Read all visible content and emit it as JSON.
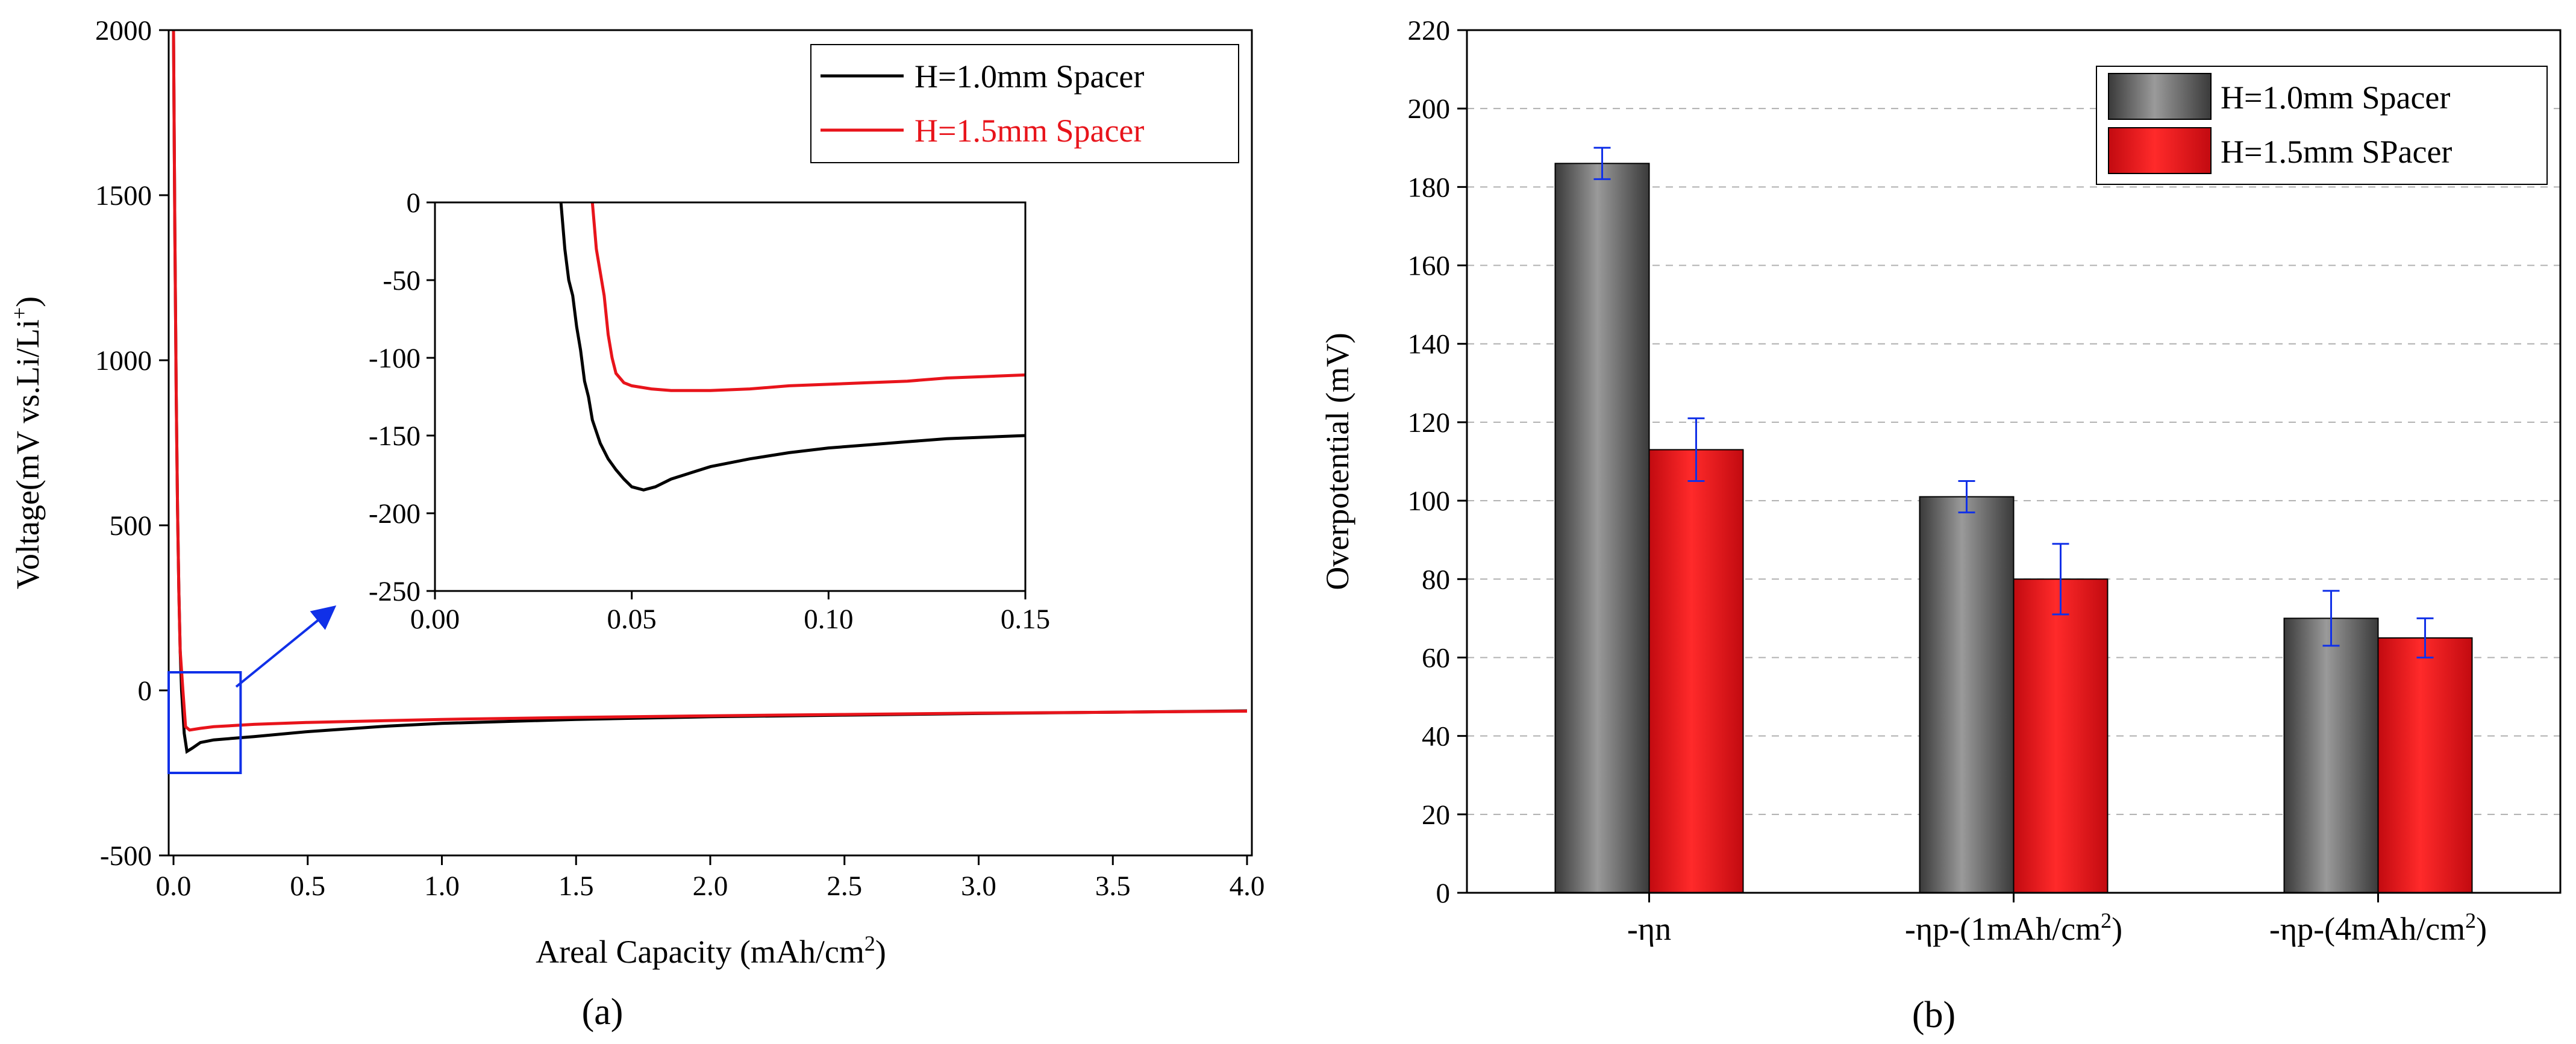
{
  "figure": {
    "panel_a_label": "(a)",
    "panel_b_label": "(b)"
  },
  "chart_data": [
    {
      "type": "line",
      "panel": "(a)",
      "xlabel": "Areal Capacity (mAh/cm",
      "xlabel_sup": "2",
      "xlabel_end": ")",
      "ylabel": "Voltage(mV vs.Li/Li",
      "ylabel_sup": "+",
      "ylabel_end": ")",
      "xlim": [
        0,
        4.0
      ],
      "ylim": [
        -500,
        2000
      ],
      "xticks": [
        0.0,
        0.5,
        1.0,
        1.5,
        2.0,
        2.5,
        3.0,
        3.5,
        4.0
      ],
      "xtick_labels": [
        "0.0",
        "0.5",
        "1.0",
        "1.5",
        "2.0",
        "2.5",
        "3.0",
        "3.5",
        "4.0"
      ],
      "yticks": [
        -500,
        0,
        500,
        1000,
        1500,
        2000
      ],
      "ytick_labels": [
        "-500",
        "0",
        "500",
        "1000",
        "1500",
        "2000"
      ],
      "legend": [
        "H=1.0mm Spacer",
        "H=1.5mm Spacer"
      ],
      "legend_position": "top-right",
      "series": [
        {
          "name": "H=1.0mm Spacer",
          "color": "#000000",
          "points": [
            [
              0.0,
              2000
            ],
            [
              0.005,
              1400
            ],
            [
              0.01,
              900
            ],
            [
              0.015,
              550
            ],
            [
              0.02,
              300
            ],
            [
              0.025,
              120
            ],
            [
              0.03,
              0
            ],
            [
              0.04,
              -130
            ],
            [
              0.05,
              -185
            ],
            [
              0.07,
              -175
            ],
            [
              0.1,
              -158
            ],
            [
              0.15,
              -150
            ],
            [
              0.3,
              -140
            ],
            [
              0.5,
              -125
            ],
            [
              0.8,
              -108
            ],
            [
              1.0,
              -100
            ],
            [
              1.5,
              -88
            ],
            [
              2.0,
              -80
            ],
            [
              2.5,
              -75
            ],
            [
              3.0,
              -70
            ],
            [
              3.5,
              -66
            ],
            [
              4.0,
              -62
            ]
          ]
        },
        {
          "name": "H=1.5mm Spacer",
          "color": "#e8141b",
          "points": [
            [
              0.0,
              2000
            ],
            [
              0.005,
              1400
            ],
            [
              0.01,
              900
            ],
            [
              0.015,
              550
            ],
            [
              0.02,
              300
            ],
            [
              0.025,
              120
            ],
            [
              0.035,
              0
            ],
            [
              0.045,
              -110
            ],
            [
              0.06,
              -120
            ],
            [
              0.1,
              -115
            ],
            [
              0.15,
              -110
            ],
            [
              0.3,
              -103
            ],
            [
              0.5,
              -97
            ],
            [
              1.0,
              -88
            ],
            [
              1.5,
              -82
            ],
            [
              2.0,
              -77
            ],
            [
              2.5,
              -73
            ],
            [
              3.0,
              -69
            ],
            [
              3.5,
              -66
            ],
            [
              4.0,
              -63
            ]
          ]
        }
      ],
      "inset": {
        "xlim": [
          0.0,
          0.15
        ],
        "ylim": [
          -250,
          0
        ],
        "xticks": [
          0.0,
          0.05,
          0.1,
          0.15
        ],
        "xtick_labels": [
          "0.00",
          "0.05",
          "0.10",
          "0.15"
        ],
        "yticks": [
          -250,
          -200,
          -150,
          -100,
          -50,
          0
        ],
        "ytick_labels": [
          "-250",
          "-200",
          "-150",
          "-100",
          "-50",
          "0"
        ],
        "highlight_box": {
          "x": [
            0.0,
            0.25
          ],
          "y": [
            -250,
            0
          ]
        },
        "series": [
          {
            "name": "H=1.0mm Spacer",
            "color": "#000000",
            "points": [
              [
                0.032,
                0
              ],
              [
                0.033,
                -30
              ],
              [
                0.034,
                -50
              ],
              [
                0.035,
                -60
              ],
              [
                0.036,
                -80
              ],
              [
                0.037,
                -95
              ],
              [
                0.038,
                -115
              ],
              [
                0.039,
                -125
              ],
              [
                0.04,
                -140
              ],
              [
                0.042,
                -155
              ],
              [
                0.044,
                -165
              ],
              [
                0.046,
                -172
              ],
              [
                0.048,
                -178
              ],
              [
                0.05,
                -183
              ],
              [
                0.053,
                -185
              ],
              [
                0.056,
                -183
              ],
              [
                0.06,
                -178
              ],
              [
                0.07,
                -170
              ],
              [
                0.08,
                -165
              ],
              [
                0.09,
                -161
              ],
              [
                0.1,
                -158
              ],
              [
                0.11,
                -156
              ],
              [
                0.12,
                -154
              ],
              [
                0.13,
                -152
              ],
              [
                0.14,
                -151
              ],
              [
                0.15,
                -150
              ]
            ]
          },
          {
            "name": "H=1.5mm Spacer",
            "color": "#e8141b",
            "points": [
              [
                0.04,
                0
              ],
              [
                0.041,
                -30
              ],
              [
                0.042,
                -45
              ],
              [
                0.043,
                -60
              ],
              [
                0.044,
                -85
              ],
              [
                0.045,
                -100
              ],
              [
                0.046,
                -110
              ],
              [
                0.048,
                -116
              ],
              [
                0.05,
                -118
              ],
              [
                0.055,
                -120
              ],
              [
                0.06,
                -121
              ],
              [
                0.07,
                -121
              ],
              [
                0.08,
                -120
              ],
              [
                0.09,
                -118
              ],
              [
                0.1,
                -117
              ],
              [
                0.11,
                -116
              ],
              [
                0.12,
                -115
              ],
              [
                0.13,
                -113
              ],
              [
                0.14,
                -112
              ],
              [
                0.15,
                -111
              ]
            ]
          }
        ]
      }
    },
    {
      "type": "bar",
      "panel": "(b)",
      "ylabel": "Overpotential (mV)",
      "ylim": [
        0,
        220
      ],
      "yticks": [
        0,
        20,
        40,
        60,
        80,
        100,
        120,
        140,
        160,
        180,
        200,
        220
      ],
      "ytick_labels": [
        "0",
        "20",
        "40",
        "60",
        "80",
        "100",
        "120",
        "140",
        "160",
        "180",
        "200",
        "220"
      ],
      "grid": true,
      "categories": [
        "-ηn",
        "-ηp-(1mAh/cm",
        "-ηp-(4mAh/cm"
      ],
      "category_sups": [
        "",
        "2",
        "2"
      ],
      "category_ends": [
        "",
        ")",
        ")"
      ],
      "legend": [
        "H=1.0mm Spacer",
        "H=1.5mm SPacer"
      ],
      "legend_position": "top-right",
      "series": [
        {
          "name": "H=1.0mm Spacer",
          "color": "#6e6e6e",
          "values": [
            186,
            101,
            70
          ],
          "errors": [
            4,
            4,
            7
          ]
        },
        {
          "name": "H=1.5mm SPacer",
          "color": "#e8141b",
          "values": [
            113,
            80,
            65
          ],
          "errors": [
            8,
            9,
            5
          ]
        }
      ]
    }
  ]
}
